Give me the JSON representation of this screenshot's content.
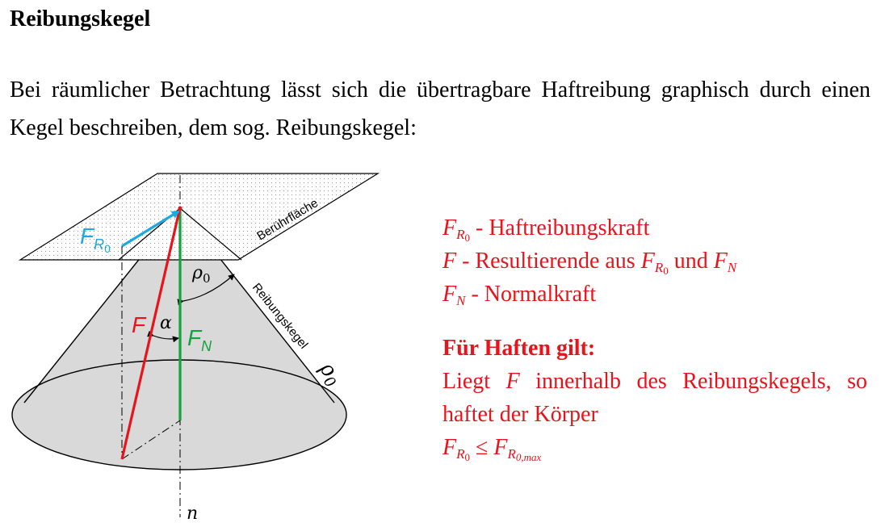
{
  "heading": "Reibungskegel",
  "intro": "Bei räumlicher Betrachtung lässt sich die übertragbare Haftreibung graphisch durch einen Kegel beschreiben, dem sog. Reibungskegel:",
  "figure": {
    "plane_label": "Berührfläche",
    "cone_label": "Reibungskegel",
    "cone_label_symbol": "ρ",
    "cone_label_subscript": "0",
    "force_FR0": "F",
    "force_FR0_sub": "R",
    "force_FR0_subsub": "0",
    "force_F": "F",
    "force_FN": "F",
    "force_FN_sub": "N",
    "angle_alpha": "α",
    "angle_rho": "ρ",
    "angle_rho_sub": "0",
    "axis_n": "n",
    "colors": {
      "FR0": "#1ba9e1",
      "F": "#e8131b",
      "FN": "#12a33a",
      "cone_fill": "#d9d9d9"
    }
  },
  "legend": {
    "line1_symbol": "F",
    "line1_sub": "R",
    "line1_subsub": "0",
    "line1_text": " - Haftreibungskraft",
    "line2_symbol": "F",
    "line2_text": " - Resultierende aus ",
    "line2_sym2": "F",
    "line2_sym2_sub": "R",
    "line2_sym2_subsub": "0",
    "line2_and": " und ",
    "line2_sym3": "F",
    "line2_sym3_sub": "N",
    "line3_symbol": "F",
    "line3_sub": "N",
    "line3_text": " - Normalkraft",
    "rule_title": "Für Haften gilt:",
    "rule_pre": "Liegt ",
    "rule_sym": "F",
    "rule_post": " innerhalb des Reibungskegels, so haftet der Körper",
    "ineq_left": "F",
    "ineq_left_sub": "R",
    "ineq_left_subsub": "0",
    "ineq_op": " ≤ ",
    "ineq_right": "F",
    "ineq_right_sub": "R",
    "ineq_right_subsub": "0,max"
  }
}
